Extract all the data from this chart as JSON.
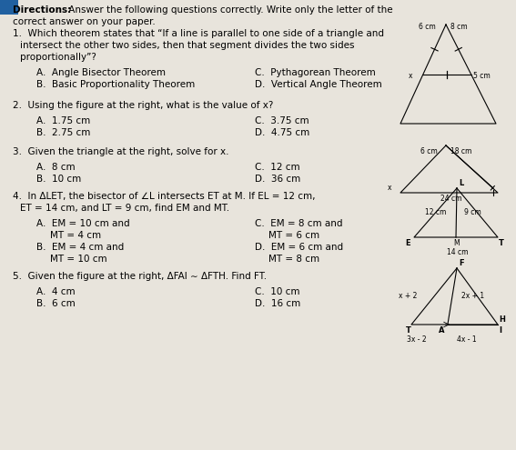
{
  "bg_color": "#e8e4dc",
  "title_bold": "Directions:",
  "title_text": " Answer the following questions correctly. Write only the letter of the correct answer on your paper.",
  "questions": [
    {
      "num": "1.",
      "text": "Which theorem states that “If a line is parallel to one side of a triangle and\n    intersect the other two sides, then that segment divides the two sides\n    proportionally”?",
      "choices": [
        [
          "A.  Angle Bisector Theorem",
          "C.  Pythagorean Theorem"
        ],
        [
          "B.  Basic Proportionality Theorem",
          "D.  Vertical Angle Theorem"
        ]
      ]
    },
    {
      "num": "2.",
      "text": "Using the figure at the right, what is the value of x?",
      "choices": [
        [
          "A.  1.75 cm",
          "C.  3.75 cm"
        ],
        [
          "B.  2.75 cm",
          "D.  4.75 cm"
        ]
      ]
    },
    {
      "num": "3.",
      "text": "Given the triangle at the right, solve for x.",
      "choices": [
        [
          "A.  8 cm",
          "C.  12 cm"
        ],
        [
          "B.  10 cm",
          "D.  36 cm"
        ]
      ]
    },
    {
      "num": "4.",
      "text": "In ΔLET, the bisector of ∠L intersects ET at M. If EL = 12 cm,\n    ET = 14 cm, and LT = 9 cm, find EM and MT.",
      "choices": [
        [
          "A.  EM = 10 cm and\n        MT = 4 cm",
          "C.  EM = 8 cm and\n        MT = 6 cm"
        ],
        [
          "B.  EM = 4 cm and\n        MT = 10 cm",
          "D.  EM = 6 cm and\n        MT = 8 cm"
        ]
      ]
    },
    {
      "num": "5.",
      "text": "Given the figure at the right, ΔFAI ∼ ΔFTH. Find FT.",
      "choices": [
        [
          "A.  4 cm",
          "C.  10 cm"
        ],
        [
          "B.  6 cm",
          "D.  16 cm"
        ]
      ]
    }
  ]
}
